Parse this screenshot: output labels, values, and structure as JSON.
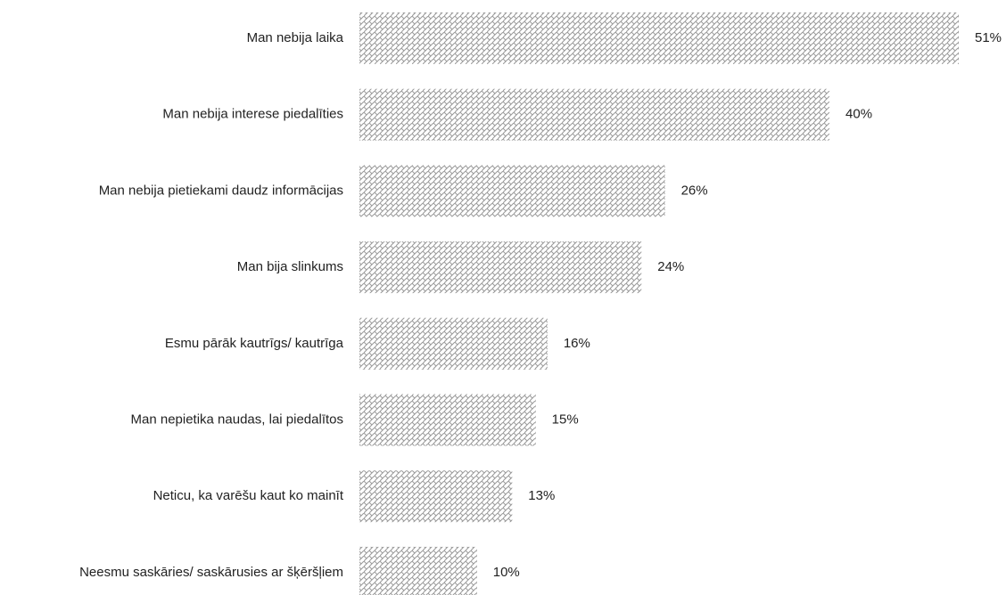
{
  "chart_data": {
    "type": "barh",
    "categories": [
      "Man nebija laika",
      "Man nebija interese piedalīties",
      "Man nebija pietiekami daudz informācijas",
      "Man bija slinkums",
      "Esmu pārāk kautrīgs/ kautrīga",
      "Man nepietika naudas, lai piedalītos",
      "Neticu, ka varēšu kaut ko mainīt",
      "Neesmu saskāries/ saskārusies ar šķēršļiem"
    ],
    "values": [
      51,
      40,
      26,
      24,
      16,
      15,
      13,
      10
    ],
    "value_labels": [
      "51%",
      "40%",
      "26%",
      "24%",
      "16%",
      "15%",
      "13%",
      "10%"
    ],
    "color": "#9a9a9a"
  }
}
